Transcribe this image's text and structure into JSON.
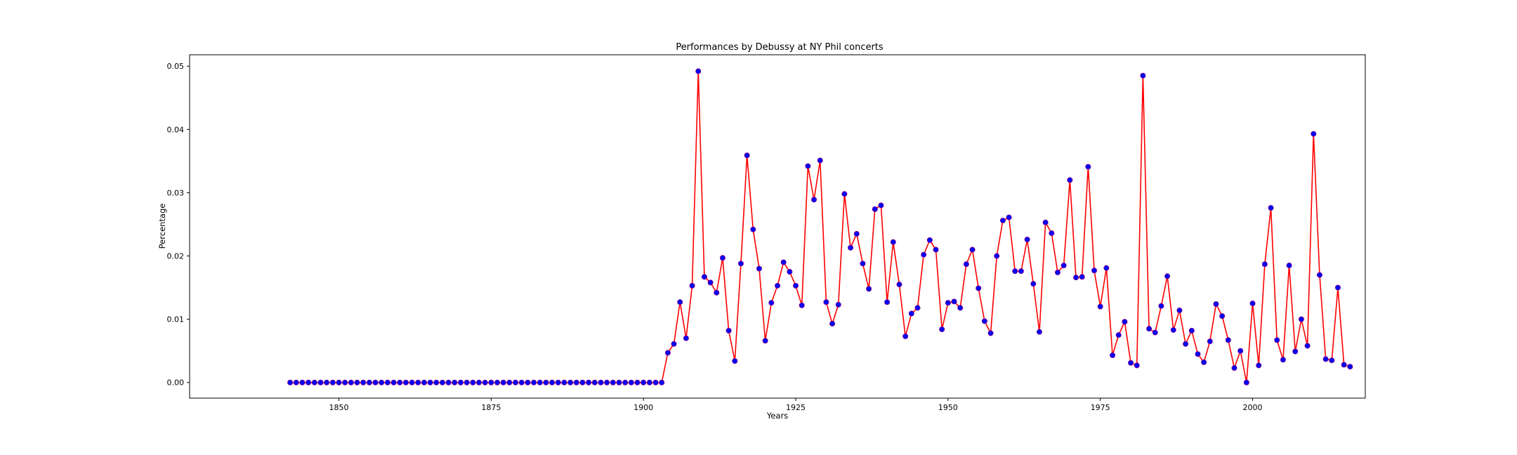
{
  "chart_data": {
    "type": "line",
    "title": "Performances by Debussy at NY Phil concerts",
    "xlabel": "Years",
    "ylabel": "Percentage",
    "xlim": [
      1825.5,
      2018.5
    ],
    "ylim": [
      -0.00247,
      0.0518
    ],
    "x_ticks": [
      1850,
      1875,
      1900,
      1925,
      1950,
      1975,
      2000
    ],
    "x_tick_labels": [
      "1850",
      "1875",
      "1900",
      "1925",
      "1950",
      "1975",
      "2000"
    ],
    "y_ticks": [
      0.0,
      0.01,
      0.02,
      0.03,
      0.04,
      0.05
    ],
    "y_tick_labels": [
      "0.00",
      "0.01",
      "0.02",
      "0.03",
      "0.04",
      "0.05"
    ],
    "grid": false,
    "line_color": "#ff0000",
    "marker_color": "#0000ff",
    "marker_edge_color": "#800080",
    "series": [
      {
        "x": [
          1842,
          1843,
          1844,
          1845,
          1846,
          1847,
          1848,
          1849,
          1850,
          1851,
          1852,
          1853,
          1854,
          1855,
          1856,
          1857,
          1858,
          1859,
          1860,
          1861,
          1862,
          1863,
          1864,
          1865,
          1866,
          1867,
          1868,
          1869,
          1870,
          1871,
          1872,
          1873,
          1874,
          1875,
          1876,
          1877,
          1878,
          1879,
          1880,
          1881,
          1882,
          1883,
          1884,
          1885,
          1886,
          1887,
          1888,
          1889,
          1890,
          1891,
          1892,
          1893,
          1894,
          1895,
          1896,
          1897,
          1898,
          1899,
          1900,
          1901,
          1902,
          1903,
          1904,
          1905,
          1906,
          1907,
          1908,
          1909,
          1910,
          1911,
          1912,
          1913,
          1914,
          1915,
          1916,
          1917,
          1918,
          1919,
          1920,
          1921,
          1922,
          1923,
          1924,
          1925,
          1926,
          1927,
          1928,
          1929,
          1930,
          1931,
          1932,
          1933,
          1934,
          1935,
          1936,
          1937,
          1938,
          1939,
          1940,
          1941,
          1942,
          1943,
          1944,
          1945,
          1946,
          1947,
          1948,
          1949,
          1950,
          1951,
          1952,
          1953,
          1954,
          1955,
          1956,
          1957,
          1958,
          1959,
          1960,
          1961,
          1962,
          1963,
          1964,
          1965,
          1966,
          1967,
          1968,
          1969,
          1970,
          1971,
          1972,
          1973,
          1974,
          1975,
          1976,
          1977,
          1978,
          1979,
          1980,
          1981,
          1982,
          1983,
          1984,
          1985,
          1986,
          1987,
          1988,
          1989,
          1990,
          1991,
          1992,
          1993,
          1994,
          1995,
          1996,
          1997,
          1998,
          1999,
          2000,
          2001,
          2002,
          2003,
          2004,
          2005,
          2006,
          2007,
          2008,
          2009,
          2010,
          2011,
          2012,
          2013,
          2014,
          2015,
          2016
        ],
        "y": [
          0,
          0,
          0,
          0,
          0,
          0,
          0,
          0,
          0,
          0,
          0,
          0,
          0,
          0,
          0,
          0,
          0,
          0,
          0,
          0,
          0,
          0,
          0,
          0,
          0,
          0,
          0,
          0,
          0,
          0,
          0,
          0,
          0,
          0,
          0,
          0,
          0,
          0,
          0,
          0,
          0,
          0,
          0,
          0,
          0,
          0,
          0,
          0,
          0,
          0,
          0,
          0,
          0,
          0,
          0,
          0,
          0,
          0,
          0,
          0,
          0,
          0,
          0.0047,
          0.0061,
          0.0127,
          0.007,
          0.0153,
          0.0492,
          0.0167,
          0.0158,
          0.0142,
          0.0197,
          0.0082,
          0.0034,
          0.0188,
          0.0359,
          0.0242,
          0.018,
          0.0066,
          0.0126,
          0.0153,
          0.019,
          0.0175,
          0.0153,
          0.0122,
          0.0342,
          0.0289,
          0.0351,
          0.0127,
          0.0093,
          0.0123,
          0.0298,
          0.0213,
          0.0235,
          0.0188,
          0.0148,
          0.0274,
          0.028,
          0.0127,
          0.0222,
          0.0155,
          0.0073,
          0.0109,
          0.0118,
          0.0202,
          0.0225,
          0.021,
          0.0084,
          0.0126,
          0.0128,
          0.0118,
          0.0187,
          0.021,
          0.0149,
          0.0097,
          0.0078,
          0.02,
          0.0256,
          0.0261,
          0.0176,
          0.0176,
          0.0226,
          0.0156,
          0.008,
          0.0253,
          0.0236,
          0.0174,
          0.0185,
          0.032,
          0.0166,
          0.0167,
          0.0341,
          0.0177,
          0.012,
          0.0181,
          0.0043,
          0.0075,
          0.0096,
          0.0031,
          0.0027,
          0.0485,
          0.0085,
          0.0079,
          0.0121,
          0.0168,
          0.0083,
          0.0114,
          0.0061,
          0.0082,
          0.0045,
          0.0032,
          0.0065,
          0.0124,
          0.0105,
          0.0067,
          0.0023,
          0.005,
          0.0,
          0.0125,
          0.0027,
          0.0187,
          0.0276,
          0.0067,
          0.0036,
          0.0185,
          0.0049,
          0.01,
          0.0058,
          0.0393,
          0.017,
          0.0037,
          0.0035,
          0.015,
          0.0028,
          0.0025
        ]
      }
    ]
  }
}
